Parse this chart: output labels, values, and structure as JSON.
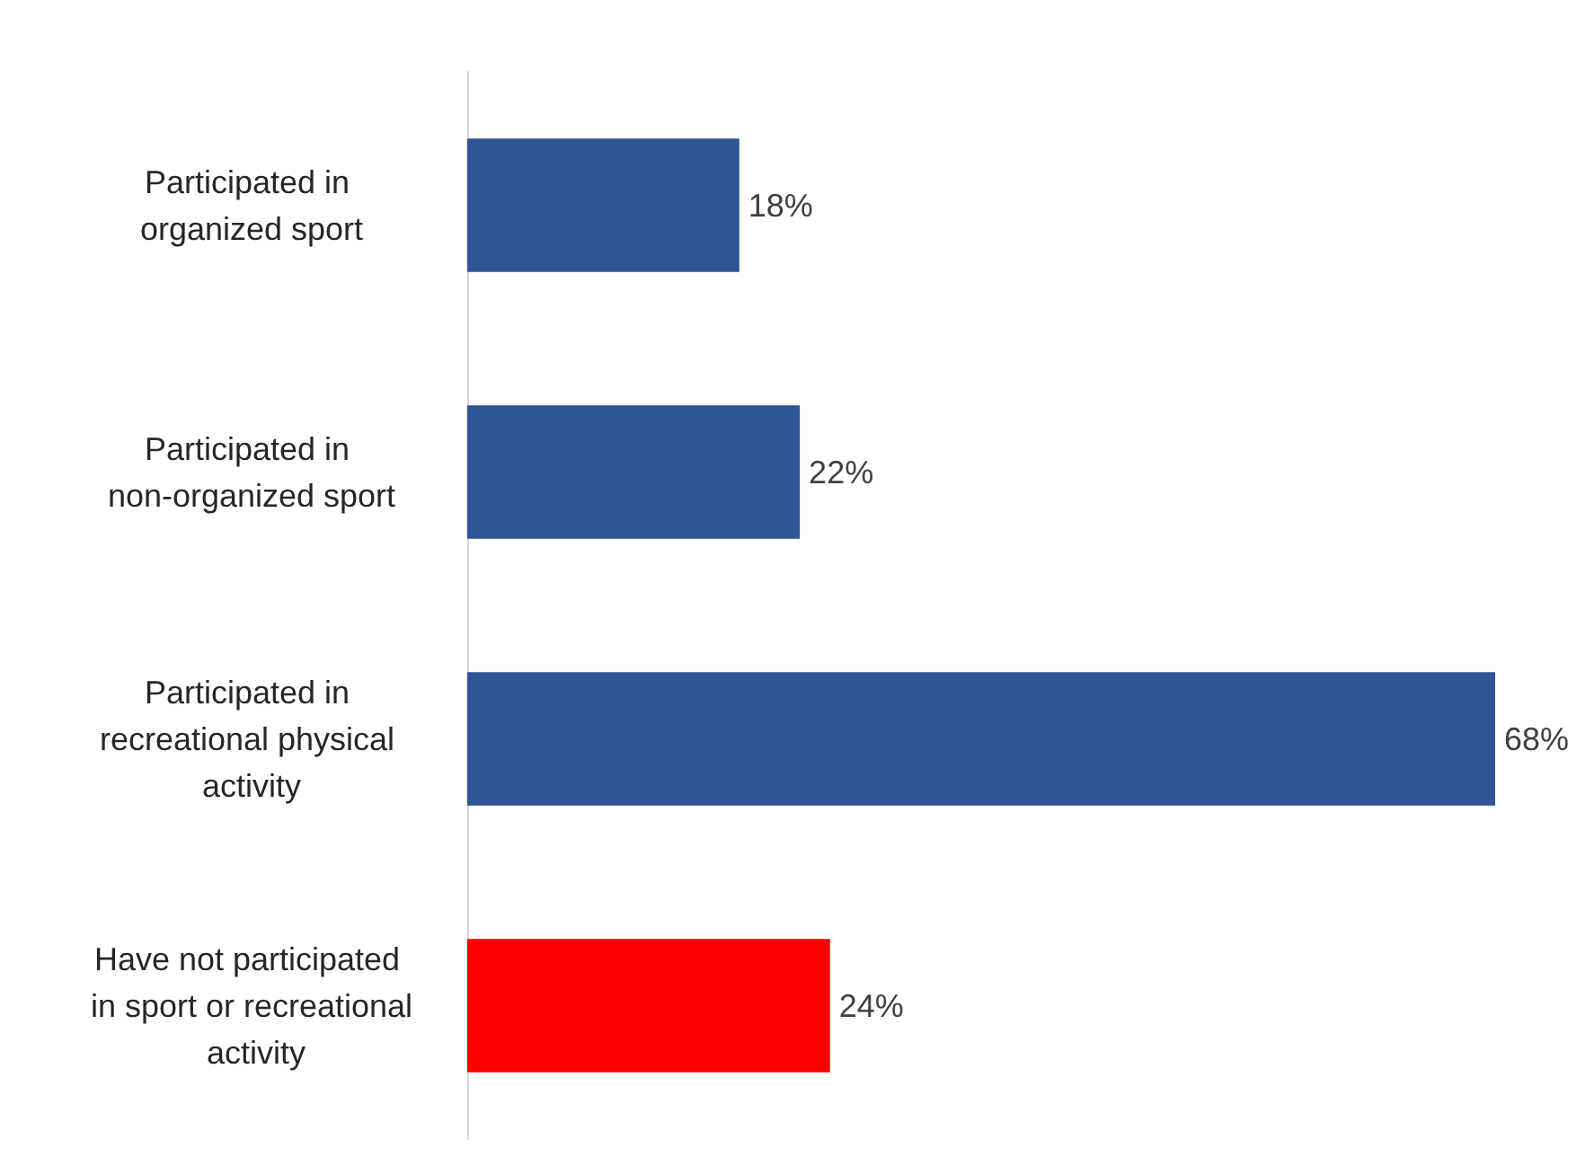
{
  "chart_data": {
    "type": "bar",
    "orientation": "horizontal",
    "categories": [
      "Participated in organized sport",
      "Participated in non-organized sport",
      "Participated in recreational physical activity",
      "Have not participated in sport or recreational activity"
    ],
    "values": [
      18,
      22,
      68,
      24
    ],
    "colors": [
      "#2f5597",
      "#2f5597",
      "#2f5597",
      "#ff0000"
    ],
    "value_labels": [
      "18%",
      "22%",
      "68%",
      "24%"
    ],
    "grid": false
  }
}
